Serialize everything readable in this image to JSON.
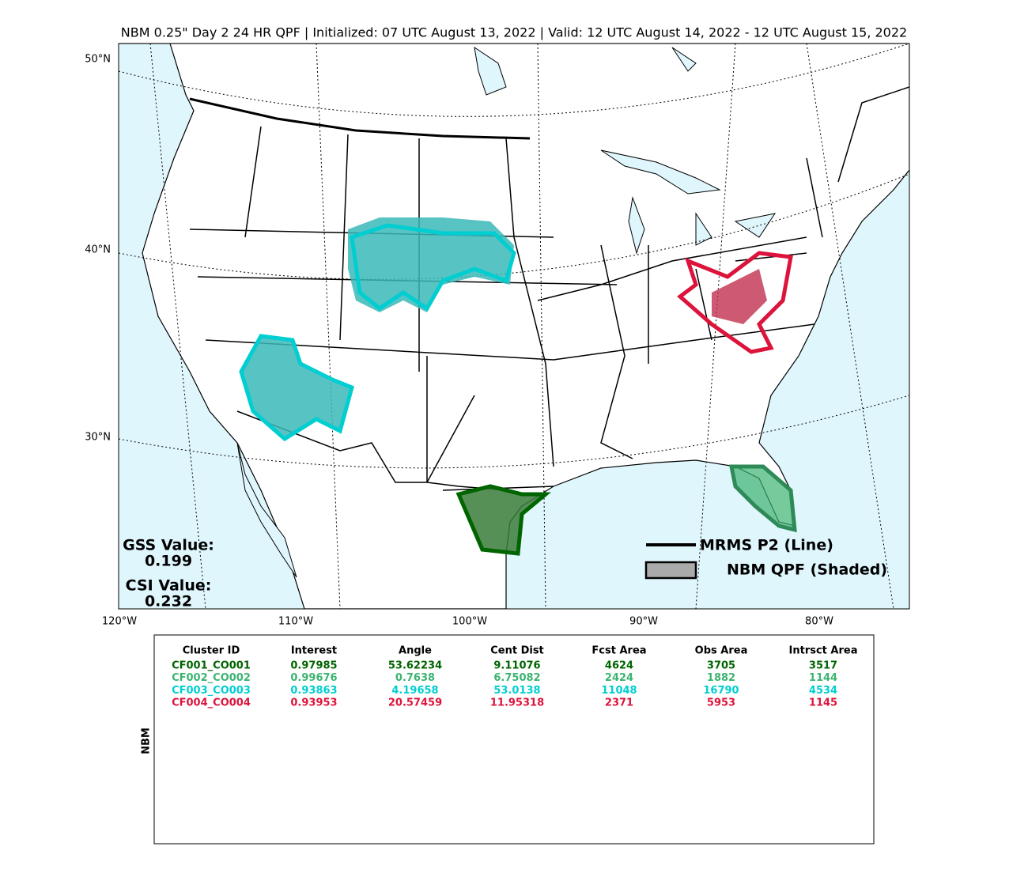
{
  "title": "NBM 0.25\" Day 2 24 HR QPF | Initialized: 07 UTC August 13, 2022 | Valid: 12 UTC August 14, 2022 - 12 UTC August 15, 2022",
  "map": {
    "lat_labels": [
      "50°N",
      "40°N",
      "30°N"
    ],
    "lon_labels": [
      "120°W",
      "110°W",
      "100°W",
      "90°W",
      "80°W"
    ],
    "stats": [
      {
        "label": "GSS Value:",
        "value": "0.199"
      },
      {
        "label": "CSI Value:",
        "value": "0.232"
      }
    ],
    "legend": [
      "MRMS P2 (Line)",
      "NBM QPF (Shaded)"
    ]
  },
  "table": {
    "side_label": "NBM",
    "header": [
      "Cluster ID",
      "Interest",
      "Angle",
      "Cent Dist",
      "Fcst Area",
      "Obs Area",
      "Intrsct Area"
    ],
    "rows": [
      {
        "color": "#006400",
        "cells": [
          "CF001_CO001",
          "0.97985",
          "53.62234",
          "9.11076",
          "4624",
          "3705",
          "3517"
        ]
      },
      {
        "color": "#3cb371",
        "cells": [
          "CF002_CO002",
          "0.99676",
          "0.7638",
          "6.75082",
          "2424",
          "1882",
          "1144"
        ]
      },
      {
        "color": "#00ced1",
        "cells": [
          "CF003_CO003",
          "0.93863",
          "4.19658",
          "53.0138",
          "11048",
          "16790",
          "4534"
        ]
      },
      {
        "color": "#dc143c",
        "cells": [
          "CF004_CO004",
          "0.93953",
          "20.57459",
          "11.95318",
          "2371",
          "5953",
          "1145"
        ]
      }
    ]
  }
}
